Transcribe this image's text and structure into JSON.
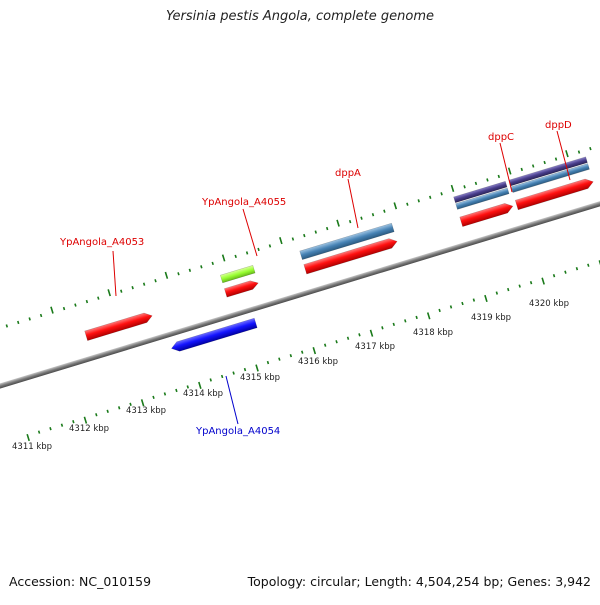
{
  "title": "Yersinia pestis Angola, complete genome",
  "accession": "Accession: NC_010159",
  "topology": "Topology: circular; Length: 4,504,254 bp; Genes: 3,942",
  "colors": {
    "forward_gene": "#ff1a1a",
    "reverse_gene": "#1a1aff",
    "trna_gene": "#99ff33",
    "protein_blue": "#4682b4",
    "protein_purple": "#483d8b",
    "tick": "#1a7a1a",
    "backbone": "#8a8a8a",
    "forward_label": "#dd0000",
    "reverse_label": "#0000cc"
  },
  "scale_labels": [
    "4311 kbp",
    "4312 kbp",
    "4313 kbp",
    "4314 kbp",
    "4315 kbp",
    "4316 kbp",
    "4317 kbp",
    "4318 kbp",
    "4319 kbp",
    "4320 kbp"
  ],
  "gene_labels": {
    "forward": [
      "YpAngola_A4053",
      "YpAngola_A4055",
      "dppA",
      "dppC",
      "dppD"
    ],
    "reverse": [
      "YpAngola_A4054"
    ]
  }
}
